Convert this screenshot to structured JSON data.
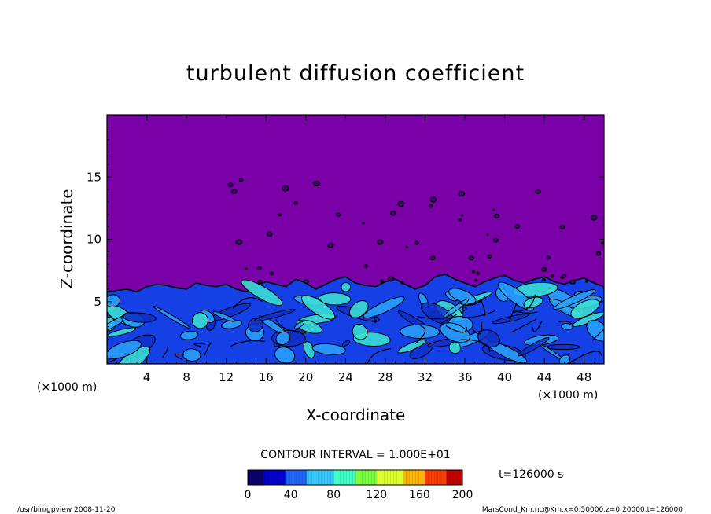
{
  "chart_data": {
    "type": "heatmap",
    "title": "turbulent diffusion coefficient",
    "xlabel": "X-coordinate",
    "ylabel": "Z-coordinate",
    "x_unit": "(×1000 m)",
    "y_unit": "(×1000 m)",
    "xlim": [
      0,
      50
    ],
    "ylim": [
      0,
      20
    ],
    "x_ticks": [
      4,
      8,
      12,
      16,
      20,
      24,
      28,
      32,
      36,
      40,
      44,
      48
    ],
    "y_ticks": [
      5,
      10,
      15
    ],
    "contour_interval_text": "CONTOUR INTERVAL = 1.000E+01",
    "colorbar": {
      "range": [
        0,
        200
      ],
      "ticks": [
        0,
        40,
        80,
        120,
        160,
        200
      ],
      "colors": [
        "#0a006e",
        "#0000d2",
        "#1e64ff",
        "#32c8ff",
        "#3cffc8",
        "#78ff3c",
        "#dcff28",
        "#ffb400",
        "#ff3c00",
        "#c80000"
      ]
    },
    "colors": {
      "background_field": "#7a00a8",
      "low_value": "#1440e6",
      "mid_value": "#2aa6ff",
      "high_value": "#3ce6d2",
      "contour": "#000000"
    },
    "boundary_layer_top_z": [
      5.8,
      5.9,
      6.0,
      5.8,
      6.2,
      6.4,
      6.3,
      6.1,
      6.0,
      6.5,
      6.3,
      6.2,
      6.4,
      6.0,
      5.8,
      6.3,
      6.6,
      6.4,
      6.2,
      6.8,
      6.5,
      6.0,
      6.4,
      6.8,
      7.0,
      6.5,
      6.3,
      6.2,
      6.6,
      6.8,
      6.4,
      6.0,
      6.3,
      7.0,
      7.2,
      6.8,
      6.5,
      6.2,
      6.6,
      6.9,
      7.1,
      6.7,
      6.5,
      6.8,
      7.0,
      6.6,
      6.4,
      6.7,
      6.9,
      6.5,
      6.2
    ],
    "time_label": "t=126000  s",
    "footer_left": "/usr/bin/gpview   2008-11-20",
    "footer_right": "MarsCond_Km.nc@Km,x=0:50000,z=0:20000,t=126000"
  }
}
